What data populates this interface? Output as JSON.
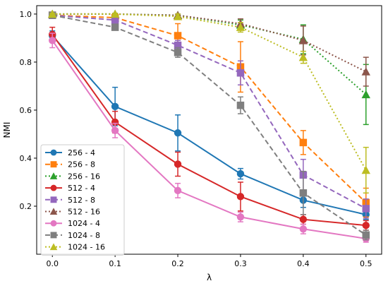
{
  "chart_data": {
    "type": "line",
    "title": "",
    "xlabel": "λ",
    "ylabel": "NMI",
    "xlim": [
      -0.025,
      0.525
    ],
    "ylim": [
      0.0,
      1.035
    ],
    "x": [
      0.0,
      0.1,
      0.2,
      0.3,
      0.4,
      0.5
    ],
    "x_ticks": [
      "0.0",
      "0.1",
      "0.2",
      "0.3",
      "0.4",
      "0.5"
    ],
    "y_ticks": [
      "0.2",
      "0.4",
      "0.6",
      "0.8",
      "1.0"
    ],
    "y_tick_values": [
      0.2,
      0.4,
      0.6,
      0.8,
      1.0
    ],
    "grid": false,
    "legend_position": "lower-left",
    "series": [
      {
        "name": "256 - 4",
        "color": "#1f77b4",
        "dash": "solid",
        "marker": "circle",
        "values": [
          0.91,
          0.615,
          0.505,
          0.335,
          0.225,
          0.165
        ],
        "err": [
          0.02,
          0.08,
          0.075,
          0.022,
          0.03,
          0.02
        ]
      },
      {
        "name": "256 - 8",
        "color": "#ff7f0e",
        "dash": "dashed",
        "marker": "square",
        "values": [
          0.995,
          0.985,
          0.91,
          0.78,
          0.465,
          0.215
        ],
        "err": [
          0.005,
          0.01,
          0.05,
          0.105,
          0.05,
          0.06
        ]
      },
      {
        "name": "256 - 16",
        "color": "#2ca02c",
        "dash": "dotted",
        "marker": "triangle",
        "values": [
          1.0,
          1.0,
          0.995,
          0.955,
          0.895,
          0.665
        ],
        "err": [
          0.003,
          0.003,
          0.005,
          0.02,
          0.06,
          0.125
        ]
      },
      {
        "name": "512 - 4",
        "color": "#d62728",
        "dash": "solid",
        "marker": "circle",
        "values": [
          0.915,
          0.55,
          0.375,
          0.24,
          0.145,
          0.12
        ],
        "err": [
          0.03,
          0.045,
          0.05,
          0.06,
          0.02,
          0.02
        ]
      },
      {
        "name": "512 - 8",
        "color": "#9467bd",
        "dash": "dashed",
        "marker": "square",
        "values": [
          0.995,
          0.975,
          0.87,
          0.755,
          0.33,
          0.19
        ],
        "err": [
          0.005,
          0.01,
          0.02,
          0.05,
          0.065,
          0.04
        ]
      },
      {
        "name": "512 - 16",
        "color": "#8c564b",
        "dash": "dotted",
        "marker": "triangle",
        "values": [
          1.0,
          1.0,
          0.995,
          0.96,
          0.89,
          0.76
        ],
        "err": [
          0.003,
          0.003,
          0.005,
          0.02,
          0.06,
          0.06
        ]
      },
      {
        "name": "1024 - 4",
        "color": "#e377c2",
        "dash": "solid",
        "marker": "circle",
        "values": [
          0.89,
          0.515,
          0.265,
          0.155,
          0.105,
          0.065
        ],
        "err": [
          0.03,
          0.03,
          0.03,
          0.02,
          0.02,
          0.015
        ]
      },
      {
        "name": "1024 - 8",
        "color": "#7f7f7f",
        "dash": "dashed",
        "marker": "square",
        "values": [
          0.995,
          0.945,
          0.84,
          0.62,
          0.255,
          0.08
        ],
        "err": [
          0.005,
          0.01,
          0.02,
          0.035,
          0.09,
          0.02
        ]
      },
      {
        "name": "1024 - 16",
        "color": "#bcbd22",
        "dash": "dotted",
        "marker": "triangle",
        "values": [
          1.0,
          1.0,
          0.99,
          0.945,
          0.82,
          0.35
        ],
        "err": [
          0.003,
          0.003,
          0.01,
          0.02,
          0.025,
          0.095
        ]
      }
    ]
  }
}
